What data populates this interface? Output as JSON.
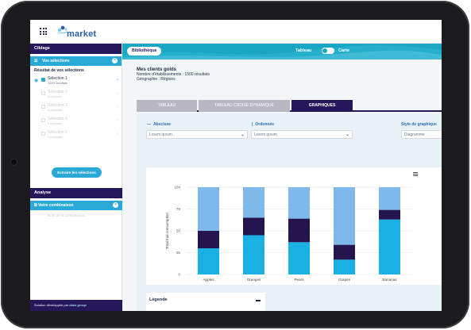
{
  "app": {
    "logo_text": "market"
  },
  "sidebar": {
    "ciblage_title": "Ciblage",
    "selections_label": "Vos sélections",
    "results_title": "Résultat de vos sélections",
    "items": [
      {
        "name": "Sélection 1",
        "sub": "1500 résultats",
        "active": true
      },
      {
        "name": "Sélection 2",
        "sub": "0 résultats",
        "active": false
      },
      {
        "name": "Sélection 3",
        "sub": "0 résultats",
        "active": false
      },
      {
        "name": "Sélection 4",
        "sub": "0 résultats",
        "active": false
      },
      {
        "name": "Sélection 5",
        "sub": "0 résultats",
        "active": false
      }
    ],
    "extract_label": "Extraire les sélections",
    "analyse_title": "Analyse",
    "combination_label": "Votre combinaison",
    "combination_name": "Nom de la combinaison",
    "footer_prefix": "Solution développée par",
    "footer_brand": "idaia group"
  },
  "main": {
    "library_button": "Bibliothèque",
    "view_toggle": {
      "left": "Tableau",
      "right": "Carte"
    },
    "heading": "Mes clients golds",
    "count_line": "Nombre d'établissements : 1500 résultats",
    "geo_line": "Géographie : Régions",
    "tabs": [
      {
        "label": "TABLEAU",
        "active": false
      },
      {
        "label": "TABLEAU CROISÉ DYNAMIQUE",
        "active": false
      },
      {
        "label": "GRAPHIQUES",
        "active": true
      }
    ],
    "abscisse_label": "Abscisse",
    "abscisse_value": "Lorem ipsum",
    "ordonnee_label": "Ordonnée",
    "ordonnee_value": "Lorem ipsum",
    "style_label": "Style de graphique",
    "style_value": "Diagramme",
    "legend_title": "Légende"
  },
  "colors": {
    "navy": "#24175a",
    "cyan": "#2aa9d6",
    "teal": "#1aa7c4",
    "bar_top": "#7fb8ea",
    "bar_mid": "#24154e",
    "bar_bottom": "#1ab0e3"
  },
  "chart_data": {
    "type": "bar",
    "stacked": true,
    "categories": [
      "Apples",
      "Oranges",
      "Pears",
      "Grapes",
      "Bananas"
    ],
    "ylabel": "Total fruit consumption",
    "ylim": [
      0,
      100
    ],
    "yticks": [
      0,
      25,
      50,
      75,
      100
    ],
    "series": [
      {
        "values": [
          30,
          45,
          37,
          17,
          63
        ]
      },
      {
        "values": [
          20,
          20,
          27,
          17,
          11
        ]
      },
      {
        "values": [
          50,
          35,
          36,
          66,
          26
        ]
      }
    ]
  }
}
